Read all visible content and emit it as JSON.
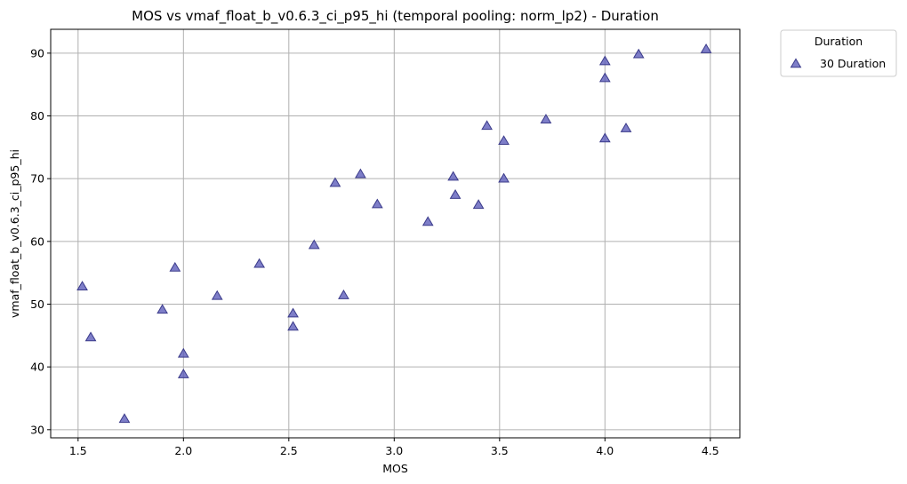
{
  "chart_data": {
    "type": "scatter",
    "title": "MOS vs vmaf_float_b_v0.6.3_ci_p95_hi (temporal pooling: norm_lp2) - Duration",
    "xlabel": "MOS",
    "ylabel": "vmaf_float_b_v0.6.3_ci_p95_hi",
    "xlim": [
      1.37,
      4.64
    ],
    "ylim": [
      28.7,
      93.8
    ],
    "xticks": [
      1.5,
      2.0,
      2.5,
      3.0,
      3.5,
      4.0,
      4.5
    ],
    "xtick_labels": [
      "1.5",
      "2.0",
      "2.5",
      "3.0",
      "3.5",
      "4.0",
      "4.5"
    ],
    "yticks": [
      30,
      40,
      50,
      60,
      70,
      80,
      90
    ],
    "ytick_labels": [
      "30",
      "40",
      "50",
      "60",
      "70",
      "80",
      "90"
    ],
    "grid": true,
    "legend": {
      "title": "Duration",
      "placement": "outside-top-right"
    },
    "series": [
      {
        "name": "30 Duration",
        "marker": "triangle",
        "color": "#5a5ab8",
        "edge_color": "#3a3a8a",
        "points": [
          {
            "x": 1.52,
            "y": 52.8
          },
          {
            "x": 1.56,
            "y": 44.7
          },
          {
            "x": 1.72,
            "y": 31.7
          },
          {
            "x": 1.9,
            "y": 49.1
          },
          {
            "x": 1.96,
            "y": 55.8
          },
          {
            "x": 2.0,
            "y": 42.1
          },
          {
            "x": 2.0,
            "y": 38.8
          },
          {
            "x": 2.16,
            "y": 51.3
          },
          {
            "x": 2.36,
            "y": 56.4
          },
          {
            "x": 2.52,
            "y": 48.5
          },
          {
            "x": 2.52,
            "y": 46.4
          },
          {
            "x": 2.62,
            "y": 59.4
          },
          {
            "x": 2.72,
            "y": 69.3
          },
          {
            "x": 2.76,
            "y": 51.4
          },
          {
            "x": 2.84,
            "y": 70.7
          },
          {
            "x": 2.92,
            "y": 65.9
          },
          {
            "x": 3.16,
            "y": 63.1
          },
          {
            "x": 3.28,
            "y": 70.3
          },
          {
            "x": 3.29,
            "y": 67.4
          },
          {
            "x": 3.4,
            "y": 65.8
          },
          {
            "x": 3.44,
            "y": 78.4
          },
          {
            "x": 3.52,
            "y": 76.0
          },
          {
            "x": 3.52,
            "y": 70.0
          },
          {
            "x": 3.72,
            "y": 79.4
          },
          {
            "x": 4.0,
            "y": 88.7
          },
          {
            "x": 4.0,
            "y": 86.0
          },
          {
            "x": 4.0,
            "y": 76.4
          },
          {
            "x": 4.1,
            "y": 78.0
          },
          {
            "x": 4.16,
            "y": 89.8
          },
          {
            "x": 4.48,
            "y": 90.6
          }
        ]
      }
    ]
  }
}
